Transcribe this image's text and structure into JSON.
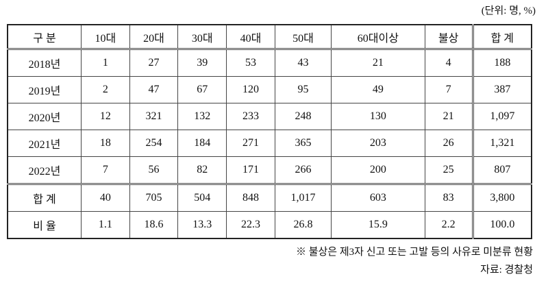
{
  "header": {
    "unit": "(단위: 명, %)"
  },
  "table": {
    "columns": [
      "구 분",
      "10대",
      "20대",
      "30대",
      "40대",
      "50대",
      "60대이상",
      "불상",
      "합 계"
    ],
    "rows": [
      [
        "2018년",
        "1",
        "27",
        "39",
        "53",
        "43",
        "21",
        "4",
        "188"
      ],
      [
        "2019년",
        "2",
        "47",
        "67",
        "120",
        "95",
        "49",
        "7",
        "387"
      ],
      [
        "2020년",
        "12",
        "321",
        "132",
        "233",
        "248",
        "130",
        "21",
        "1,097"
      ],
      [
        "2021년",
        "18",
        "254",
        "184",
        "271",
        "365",
        "203",
        "26",
        "1,321"
      ],
      [
        "2022년",
        "7",
        "56",
        "82",
        "171",
        "266",
        "200",
        "25",
        "807"
      ],
      [
        "합 계",
        "40",
        "705",
        "504",
        "848",
        "1,017",
        "603",
        "83",
        "3,800"
      ],
      [
        "비 율",
        "1.1",
        "18.6",
        "13.3",
        "22.3",
        "26.8",
        "15.9",
        "2.2",
        "100.0"
      ]
    ]
  },
  "footnotes": [
    "※ 불상은 제3자 신고 또는 고발 등의 사유로 미분류 현황",
    "자료: 경찰청"
  ]
}
